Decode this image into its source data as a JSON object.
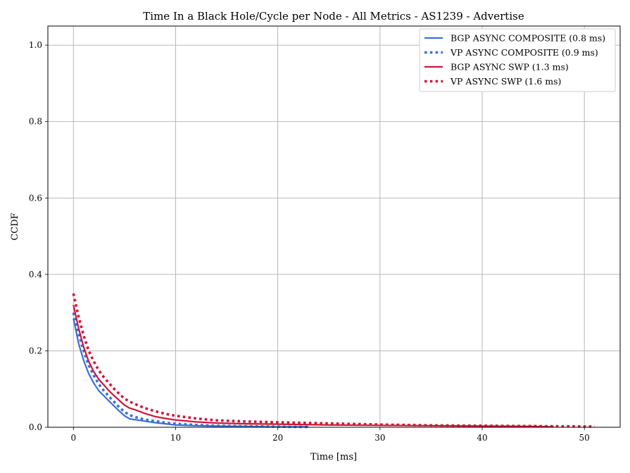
{
  "chart_data": {
    "type": "line",
    "title": "Time In a Black Hole/Cycle per Node - All Metrics - AS1239 - Advertise",
    "xlabel": "Time [ms]",
    "ylabel": "CCDF",
    "xlim": [
      -2.5,
      53.5
    ],
    "ylim": [
      0.0,
      1.05
    ],
    "xticks": [
      0,
      10,
      20,
      30,
      40,
      50
    ],
    "yticks": [
      0.0,
      0.2,
      0.4,
      0.6,
      0.8,
      1.0
    ],
    "xtick_labels": [
      "0",
      "10",
      "20",
      "30",
      "40",
      "50"
    ],
    "ytick_labels": [
      "0.0",
      "0.2",
      "0.4",
      "0.6",
      "0.8",
      "1.0"
    ],
    "grid": true,
    "legend_position": "top-right",
    "series": [
      {
        "name": "BGP ASYNC COMPOSITE (0.8 ms)",
        "color": "#3a6fd8",
        "style": "solid",
        "x": [
          0,
          0.5,
          1,
          1.5,
          2,
          2.5,
          3,
          3.5,
          4,
          4.5,
          5,
          5.5,
          6,
          7,
          8,
          9,
          10,
          12,
          14,
          17,
          20,
          23
        ],
        "y": [
          0.285,
          0.22,
          0.175,
          0.14,
          0.115,
          0.095,
          0.082,
          0.068,
          0.055,
          0.042,
          0.03,
          0.022,
          0.02,
          0.016,
          0.012,
          0.009,
          0.006,
          0.004,
          0.003,
          0.002,
          0.001,
          0.001
        ]
      },
      {
        "name": "VP ASYNC COMPOSITE (0.9 ms)",
        "color": "#3a6fd8",
        "style": "dotted",
        "x": [
          0,
          0.5,
          1,
          1.5,
          2,
          2.5,
          3,
          3.5,
          4,
          4.5,
          5,
          5.5,
          6,
          7,
          8,
          9,
          10,
          12,
          14,
          16,
          19,
          22,
          23
        ],
        "y": [
          0.3,
          0.245,
          0.2,
          0.162,
          0.135,
          0.112,
          0.095,
          0.08,
          0.066,
          0.052,
          0.04,
          0.032,
          0.027,
          0.02,
          0.016,
          0.012,
          0.009,
          0.006,
          0.004,
          0.003,
          0.002,
          0.001,
          0.001
        ]
      },
      {
        "name": "BGP ASYNC SWP (1.3 ms)",
        "color": "#d0163a",
        "style": "solid",
        "x": [
          0,
          0.5,
          1,
          1.5,
          2,
          2.5,
          3,
          3.5,
          4,
          4.5,
          5,
          5.5,
          6,
          7,
          8,
          9,
          10,
          12,
          14,
          17,
          20,
          25,
          30,
          35,
          40,
          45,
          47
        ],
        "y": [
          0.32,
          0.26,
          0.21,
          0.172,
          0.145,
          0.125,
          0.11,
          0.095,
          0.082,
          0.07,
          0.058,
          0.05,
          0.046,
          0.036,
          0.028,
          0.023,
          0.019,
          0.014,
          0.011,
          0.009,
          0.008,
          0.006,
          0.005,
          0.004,
          0.003,
          0.002,
          0.001
        ]
      },
      {
        "name": "VP ASYNC SWP (1.6 ms)",
        "color": "#d0163a",
        "style": "dotted",
        "x": [
          0,
          0.5,
          1,
          1.5,
          2,
          2.5,
          3,
          3.5,
          4,
          4.5,
          5,
          5.5,
          6,
          7,
          8,
          9,
          10,
          12,
          14,
          17,
          20,
          25,
          30,
          35,
          40,
          45,
          50,
          51
        ],
        "y": [
          0.35,
          0.29,
          0.24,
          0.2,
          0.172,
          0.148,
          0.13,
          0.115,
          0.1,
          0.087,
          0.075,
          0.067,
          0.061,
          0.05,
          0.042,
          0.035,
          0.03,
          0.023,
          0.018,
          0.015,
          0.013,
          0.01,
          0.007,
          0.005,
          0.004,
          0.003,
          0.002,
          0.002
        ]
      }
    ]
  }
}
